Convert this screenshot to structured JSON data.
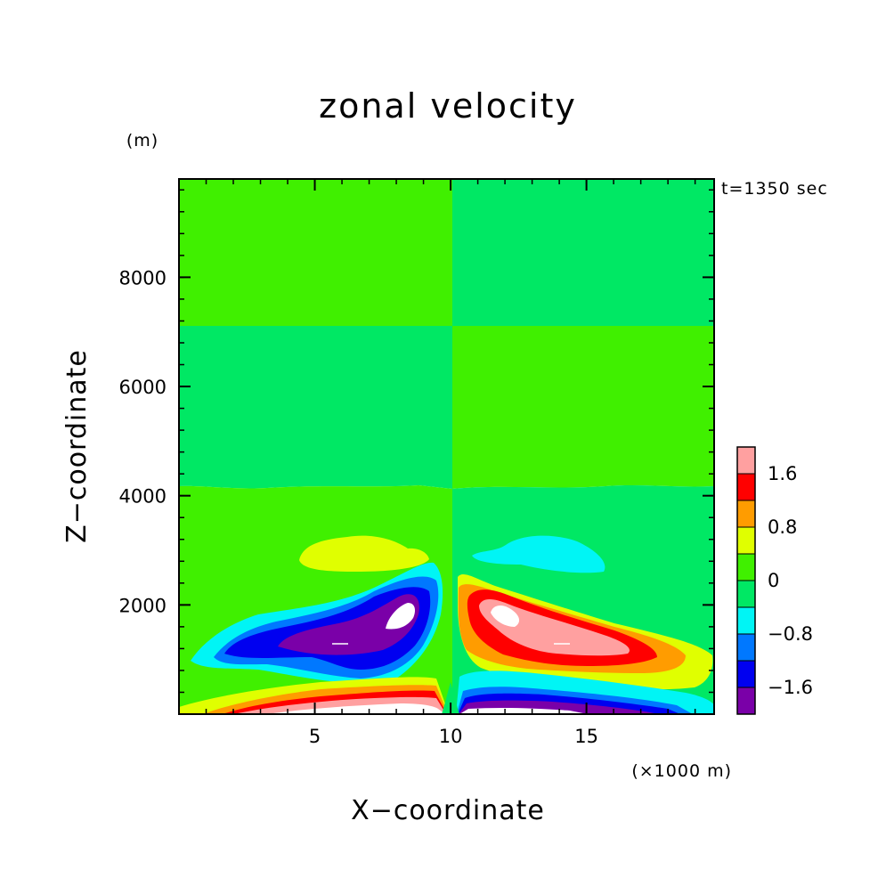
{
  "chart_data": {
    "type": "heatmap",
    "title": "zonal velocity",
    "xlabel": "X−coordinate",
    "ylabel": "Z−coordinate",
    "x_unit": "(×1000 m)",
    "y_unit": "(m)",
    "time_label": "t=1350 sec",
    "xlim": [
      0,
      19.7
    ],
    "ylim": [
      0,
      9800
    ],
    "x_ticks": [
      5,
      10,
      15
    ],
    "x_tick_labels": [
      "5",
      "10",
      "15"
    ],
    "y_ticks": [
      2000,
      4000,
      6000,
      8000
    ],
    "y_tick_labels": [
      "2000",
      "4000",
      "6000",
      "8000"
    ],
    "x_minor_step": 1,
    "y_minor_step": 400,
    "grid": false,
    "legend": "colorbar right",
    "colorbar": {
      "levels": [
        -2.0,
        -1.6,
        -1.2,
        -0.8,
        -0.4,
        0,
        0.4,
        0.8,
        1.2,
        1.6,
        2.0
      ],
      "colors": [
        "#7a00a8",
        "#0000f0",
        "#0078ff",
        "#00f5f5",
        "#00e864",
        "#40f000",
        "#e0ff00",
        "#ff9c00",
        "#ff0000",
        "#ffa0a0"
      ],
      "tick_labels": [
        "1.6",
        "0.8",
        "0",
        "−0.8",
        "−1.6"
      ],
      "tick_values": [
        1.6,
        0.8,
        0.0,
        -0.8,
        -1.6
      ]
    },
    "features": [
      {
        "name": "upper layer left of x=10",
        "x_range": [
          0,
          10
        ],
        "z_range": [
          7200,
          9800
        ],
        "value_range": [
          0,
          0.4
        ]
      },
      {
        "name": "upper layer right of x=10",
        "x_range": [
          10,
          19.7
        ],
        "z_range": [
          7200,
          9800
        ],
        "value_range": [
          -0.4,
          0
        ]
      },
      {
        "name": "middle layer left of x=10",
        "x_range": [
          0,
          10
        ],
        "z_range": [
          4300,
          7200
        ],
        "value_range": [
          -0.4,
          0
        ]
      },
      {
        "name": "middle layer right of x=10",
        "x_range": [
          10,
          19.7
        ],
        "z_range": [
          4300,
          7200
        ],
        "value_range": [
          0,
          0.4
        ]
      },
      {
        "name": "weak positive lobe",
        "center": [
          7.5,
          2850
        ],
        "value_range": [
          0.4,
          0.8
        ]
      },
      {
        "name": "weak negative lobe",
        "center": [
          14.0,
          2850
        ],
        "value_range": [
          -1.2,
          -0.8
        ]
      },
      {
        "name": "negative jet core",
        "center": [
          6.5,
          1400
        ],
        "min": -2.0
      },
      {
        "name": "positive jet core",
        "center": [
          13.0,
          1500
        ],
        "max": 2.0
      },
      {
        "name": "strong positive shear at ground left",
        "x_range": [
          1.5,
          10
        ],
        "z_range": [
          0,
          450
        ],
        "max": 2.0
      },
      {
        "name": "strong negative shear at ground right",
        "x_range": [
          10,
          18.5
        ],
        "z_range": [
          0,
          450
        ],
        "min": -2.0
      }
    ]
  }
}
